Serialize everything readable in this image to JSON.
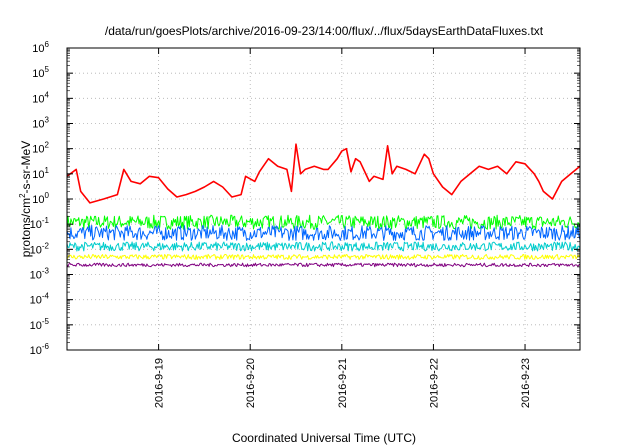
{
  "chart_data": {
    "type": "line",
    "title": "/data/run/goesPlots/archive/2016-09-23/14:00/flux/../flux/5daysEarthDataFluxes.txt",
    "xlabel": "Coordinated Universal Time (UTC)",
    "ylabel": "protons/cm2-s-sr-MeV",
    "ylabel_parts": {
      "base": "protons/cm",
      "sup": "2",
      "rest": "-s-sr-MeV"
    },
    "yscale": "log",
    "ylim": [
      1e-06,
      1000000.0
    ],
    "xlim": [
      0,
      5.6
    ],
    "grid": true,
    "x_ticks": [
      {
        "x": 1,
        "label": "2016-9-19"
      },
      {
        "x": 2,
        "label": "2016-9-20"
      },
      {
        "x": 3,
        "label": "2016-9-21"
      },
      {
        "x": 4,
        "label": "2016-9-22"
      },
      {
        "x": 5,
        "label": "2016-9-23"
      }
    ],
    "y_ticks": [
      {
        "exp": -6,
        "base": "10",
        "sup": "-6"
      },
      {
        "exp": -5,
        "base": "10",
        "sup": "-5"
      },
      {
        "exp": -4,
        "base": "10",
        "sup": "-4"
      },
      {
        "exp": -3,
        "base": "10",
        "sup": "-3"
      },
      {
        "exp": -2,
        "base": "10",
        "sup": "-2"
      },
      {
        "exp": -1,
        "base": "10",
        "sup": "-1"
      },
      {
        "exp": 0,
        "base": "10",
        "sup": "0"
      },
      {
        "exp": 1,
        "base": "10",
        "sup": "1"
      },
      {
        "exp": 2,
        "base": "10",
        "sup": "2"
      },
      {
        "exp": 3,
        "base": "10",
        "sup": "3"
      },
      {
        "exp": 4,
        "base": "10",
        "sup": "4"
      },
      {
        "exp": 5,
        "base": "10",
        "sup": "5"
      },
      {
        "exp": 6,
        "base": "10",
        "sup": "6"
      }
    ],
    "series": [
      {
        "color": "#ff0000",
        "noisy": false,
        "x": [
          0,
          0.1,
          0.15,
          0.25,
          0.4,
          0.55,
          0.62,
          0.7,
          0.8,
          0.9,
          1.0,
          1.1,
          1.2,
          1.3,
          1.4,
          1.5,
          1.6,
          1.7,
          1.8,
          1.9,
          1.95,
          2.05,
          2.1,
          2.2,
          2.3,
          2.4,
          2.45,
          2.5,
          2.55,
          2.6,
          2.7,
          2.8,
          2.85,
          2.95,
          3.0,
          3.05,
          3.1,
          3.15,
          3.2,
          3.3,
          3.35,
          3.45,
          3.5,
          3.55,
          3.6,
          3.7,
          3.8,
          3.9,
          3.95,
          4.0,
          4.1,
          4.2,
          4.3,
          4.4,
          4.5,
          4.6,
          4.7,
          4.8,
          4.9,
          5.0,
          5.1,
          5.15,
          5.2,
          5.3,
          5.4,
          5.5,
          5.6
        ],
        "values": [
          8,
          15,
          2,
          0.7,
          1,
          1.5,
          15,
          5,
          4,
          8,
          7,
          2.5,
          1.2,
          1.5,
          2,
          3,
          5,
          3,
          1.2,
          1.5,
          8,
          5,
          12,
          40,
          20,
          15,
          2,
          150,
          10,
          15,
          20,
          15,
          15,
          40,
          80,
          100,
          12,
          40,
          30,
          5,
          8,
          6,
          130,
          10,
          20,
          15,
          10,
          60,
          40,
          10,
          3,
          1.5,
          5,
          10,
          20,
          15,
          20,
          10,
          30,
          25,
          10,
          5,
          2,
          1,
          5,
          10,
          20
        ]
      },
      {
        "color": "#00ff00",
        "noisy": true,
        "level": 0.12,
        "spread": 0.28
      },
      {
        "color": "#0066ff",
        "noisy": true,
        "level": 0.045,
        "spread": 0.3
      },
      {
        "color": "#00cccc",
        "noisy": true,
        "level": 0.013,
        "spread": 0.18
      },
      {
        "color": "#ffff00",
        "noisy": true,
        "level": 0.005,
        "spread": 0.1
      },
      {
        "color": "#800080",
        "noisy": true,
        "level": 0.0024,
        "spread": 0.07
      }
    ]
  }
}
